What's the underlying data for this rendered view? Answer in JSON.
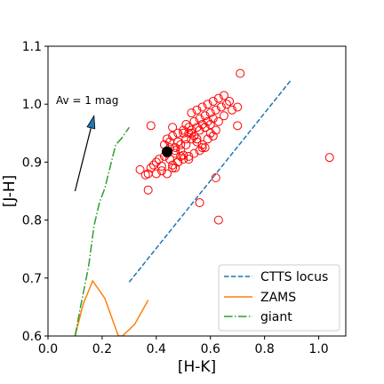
{
  "chart_data": {
    "type": "scatter",
    "xlabel": "[H-K]",
    "ylabel": "[J-H]",
    "xlim": [
      0.0,
      1.1
    ],
    "ylim": [
      0.6,
      1.1
    ],
    "xticks": [
      "0.0",
      "0.2",
      "0.4",
      "0.6",
      "0.8",
      "1.0"
    ],
    "xtick_values": [
      0.0,
      0.2,
      0.4,
      0.6,
      0.8,
      1.0
    ],
    "yticks": [
      "0.6",
      "0.7",
      "0.8",
      "0.9",
      "1.0",
      "1.1"
    ],
    "ytick_values": [
      0.6,
      0.7,
      0.8,
      0.9,
      1.0,
      1.1
    ],
    "grid": false,
    "legend_position": "lower-right",
    "annotation": {
      "text": "Av = 1 mag",
      "arrow_from": [
        0.1,
        0.85
      ],
      "arrow_to": [
        0.17,
        0.98
      ],
      "arrow_color": "#1f77b4"
    },
    "series": [
      {
        "name": "CTTS locus",
        "kind": "line",
        "style": "dashed",
        "color": "#1f77b4",
        "x": [
          0.3,
          0.9
        ],
        "y": [
          0.693,
          1.043
        ]
      },
      {
        "name": "ZAMS",
        "kind": "line",
        "style": "solid",
        "color": "#ff7f0e",
        "x": [
          0.1,
          0.13,
          0.165,
          0.21,
          0.26,
          0.275,
          0.32,
          0.37
        ],
        "y": [
          0.6,
          0.655,
          0.695,
          0.665,
          0.6,
          0.6,
          0.62,
          0.662
        ]
      },
      {
        "name": "giant",
        "kind": "line",
        "style": "dashdot",
        "color": "#2ca02c",
        "x": [
          0.1,
          0.12,
          0.15,
          0.17,
          0.19,
          0.21,
          0.25,
          0.27,
          0.3
        ],
        "y": [
          0.6,
          0.65,
          0.72,
          0.79,
          0.83,
          0.855,
          0.93,
          0.94,
          0.96
        ]
      },
      {
        "kind": "scatter",
        "marker": "open-circle",
        "color": "#ff0000",
        "x": [
          0.34,
          0.36,
          0.37,
          0.38,
          0.39,
          0.4,
          0.41,
          0.42,
          0.43,
          0.44,
          0.45,
          0.46,
          0.47,
          0.48,
          0.49,
          0.5,
          0.4,
          0.42,
          0.44,
          0.46,
          0.48,
          0.5,
          0.52,
          0.54,
          0.56,
          0.58,
          0.43,
          0.45,
          0.47,
          0.49,
          0.51,
          0.53,
          0.55,
          0.57,
          0.59,
          0.61,
          0.44,
          0.46,
          0.48,
          0.5,
          0.52,
          0.54,
          0.56,
          0.58,
          0.6,
          0.62,
          0.47,
          0.49,
          0.51,
          0.53,
          0.55,
          0.57,
          0.59,
          0.61,
          0.63,
          0.65,
          0.5,
          0.52,
          0.54,
          0.56,
          0.58,
          0.6,
          0.62,
          0.64,
          0.66,
          0.68,
          0.53,
          0.55,
          0.57,
          0.59,
          0.61,
          0.63,
          0.65,
          0.67,
          0.7,
          0.71,
          0.46,
          0.48,
          0.51,
          0.53,
          0.55,
          0.57,
          0.38,
          0.37,
          0.56,
          0.62,
          0.63,
          0.7,
          1.04,
          0.45,
          0.47,
          0.52,
          0.58,
          0.6
        ],
        "y": [
          0.887,
          0.878,
          0.88,
          0.89,
          0.895,
          0.9,
          0.905,
          0.893,
          0.91,
          0.915,
          0.905,
          0.895,
          0.89,
          0.9,
          0.91,
          0.912,
          0.88,
          0.885,
          0.88,
          0.89,
          0.9,
          0.905,
          0.91,
          0.915,
          0.92,
          0.925,
          0.93,
          0.935,
          0.925,
          0.92,
          0.93,
          0.94,
          0.935,
          0.93,
          0.94,
          0.945,
          0.94,
          0.945,
          0.95,
          0.955,
          0.95,
          0.945,
          0.955,
          0.96,
          0.965,
          0.955,
          0.92,
          0.93,
          0.94,
          0.95,
          0.96,
          0.965,
          0.97,
          0.975,
          0.97,
          0.98,
          0.95,
          0.96,
          0.97,
          0.975,
          0.98,
          0.985,
          0.99,
          0.995,
          1.0,
          0.99,
          0.985,
          0.99,
          0.995,
          1.0,
          1.005,
          1.01,
          1.015,
          1.005,
          0.995,
          1.053,
          0.96,
          0.935,
          0.965,
          0.955,
          0.94,
          0.925,
          0.963,
          0.852,
          0.83,
          0.873,
          0.8,
          0.963,
          0.908,
          0.925,
          0.915,
          0.905,
          0.96,
          0.95
        ]
      },
      {
        "kind": "scatter",
        "marker": "filled-circle",
        "color": "#000000",
        "x": [
          0.44
        ],
        "y": [
          0.918
        ]
      }
    ]
  }
}
